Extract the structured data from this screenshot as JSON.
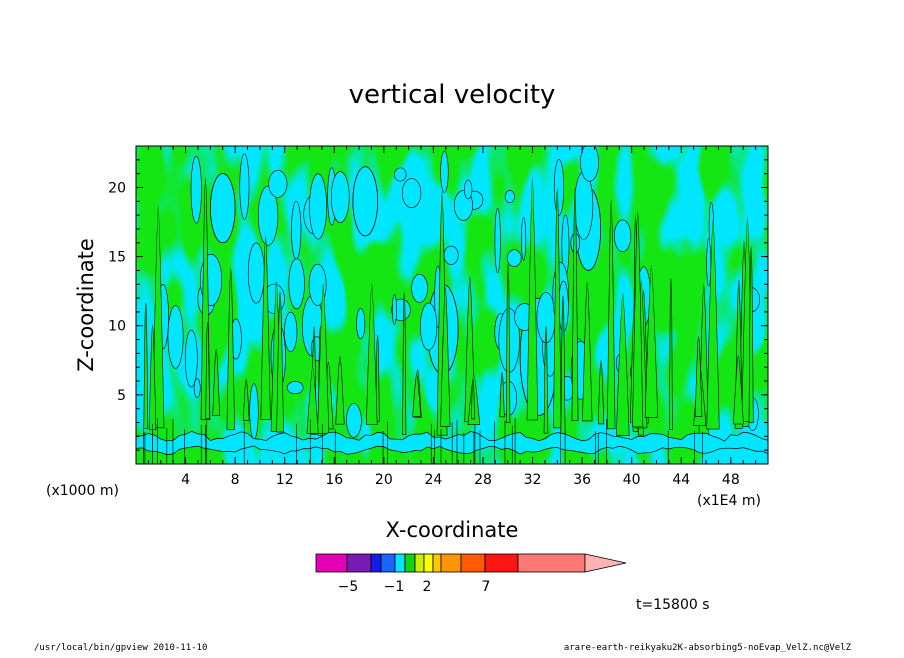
{
  "chart_data": {
    "type": "heatmap",
    "title": "vertical velocity",
    "xlabel": "X-coordinate",
    "ylabel": "Z-coordinate",
    "x_unit": "(x1E4 m)",
    "y_unit": "(x1000 m)",
    "xlim": [
      0,
      51
    ],
    "ylim": [
      0,
      23
    ],
    "x_ticks": [
      4,
      8,
      12,
      16,
      20,
      24,
      28,
      32,
      36,
      40,
      44,
      48
    ],
    "y_ticks": [
      5,
      10,
      15,
      20
    ],
    "x_ticks_labels": [
      "4",
      "8",
      "12",
      "16",
      "20",
      "24",
      "28",
      "32",
      "36",
      "40",
      "44",
      "48"
    ],
    "y_ticks_labels": [
      "5",
      "10",
      "15",
      "20"
    ],
    "colorbar": {
      "levels_labeled": [
        -5,
        -1,
        2,
        7
      ],
      "labels": [
        "−5",
        "−1",
        "2",
        "7"
      ],
      "colors": [
        "#e600b4",
        "#7a1ab4",
        "#1a1ae6",
        "#1a64ff",
        "#00e6ff",
        "#14d214",
        "#c8f000",
        "#ffff00",
        "#ffc800",
        "#ff9600",
        "#ff5a00",
        "#ff1414",
        "#ff7878",
        "#ffb4b4"
      ],
      "dominant_colors": {
        "negative": "#00e6ff",
        "positive": "#14e614"
      }
    },
    "time_label": "t=15800 s"
  },
  "footer": {
    "left": "/usr/local/bin/gpview   2010-11-10",
    "right": "arare-earth-reikyaku2K-absorbing5-noEvap_VelZ.nc@VelZ"
  }
}
